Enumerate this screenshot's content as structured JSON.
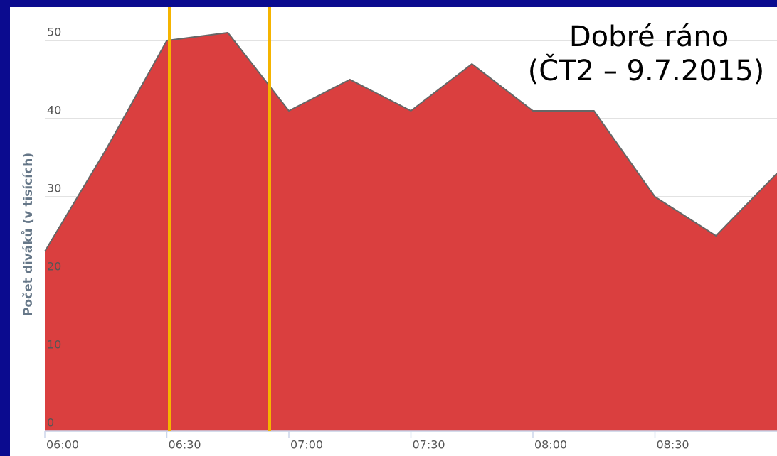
{
  "chart_data": {
    "type": "area",
    "title": "Dobré ráno",
    "subtitle": "(ČT2 – 9.7.2015)",
    "y_label": "Počet diváků (v tisících)",
    "categories": [
      "06:00",
      null,
      "06:30",
      null,
      "07:00",
      null,
      "07:30",
      null,
      "08:00",
      null,
      "08:30",
      null,
      null
    ],
    "series": [
      {
        "name": "Počet diváků",
        "color": "#d93b3b",
        "values": [
          23,
          36,
          50,
          51,
          41,
          45,
          41,
          47,
          41,
          41,
          30,
          25,
          33
        ]
      }
    ],
    "ylim": [
      0,
      50
    ],
    "yticks": [
      0,
      10,
      20,
      30,
      40,
      50
    ],
    "grid": true
  }
}
